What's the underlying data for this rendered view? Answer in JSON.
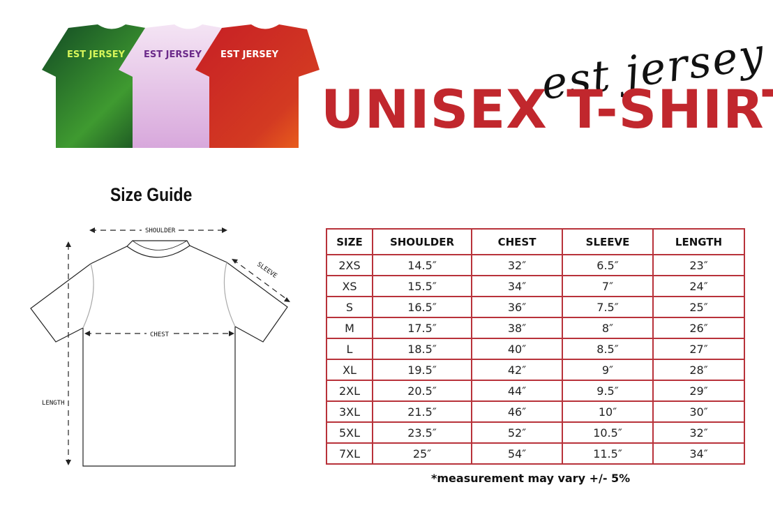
{
  "header": {
    "brand_script": "est jersey",
    "title": "UNISEX T-SHIRT",
    "shirt_logo": "EST JERSEY",
    "shirt_colors": [
      "#1e5a2c",
      "#efd3ef",
      "#cf2a2a"
    ]
  },
  "guide": {
    "title": "Size Guide",
    "labels": {
      "shoulder": "SHOULDER",
      "sleeve": "SLEEVE",
      "chest": "CHEST",
      "length": "LENGTH"
    }
  },
  "table": {
    "headers": [
      "SIZE",
      "SHOULDER",
      "CHEST",
      "SLEEVE",
      "LENGTH"
    ],
    "rows": [
      [
        "2XS",
        "14.5″",
        "32″",
        "6.5″",
        "23″"
      ],
      [
        "XS",
        "15.5″",
        "34″",
        "7″",
        "24″"
      ],
      [
        "S",
        "16.5″",
        "36″",
        "7.5″",
        "25″"
      ],
      [
        "M",
        "17.5″",
        "38″",
        "8″",
        "26″"
      ],
      [
        "L",
        "18.5″",
        "40″",
        "8.5″",
        "27″"
      ],
      [
        "XL",
        "19.5″",
        "42″",
        "9″",
        "28″"
      ],
      [
        "2XL",
        "20.5″",
        "44″",
        "9.5″",
        "29″"
      ],
      [
        "3XL",
        "21.5″",
        "46″",
        "10″",
        "30″"
      ],
      [
        "5XL",
        "23.5″",
        "52″",
        "10.5″",
        "32″"
      ],
      [
        "7XL",
        "25″",
        "54″",
        "11.5″",
        "34″"
      ]
    ],
    "border_color": "#b8323a"
  },
  "note": "*measurement may vary +/- 5%"
}
